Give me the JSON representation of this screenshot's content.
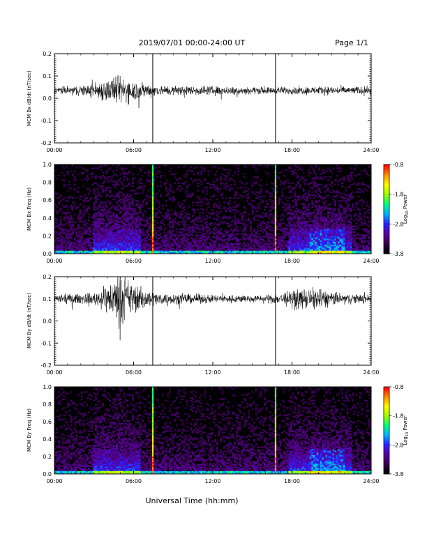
{
  "header": {
    "title": "2019/07/01  00:00-24:00 UT",
    "page": "Page 1/1"
  },
  "footer": {
    "xlabel": "Universal Time (hh:mm)"
  },
  "colorbar": {
    "label": "Log10 Power",
    "label_main": "Log",
    "label_sub": "10",
    "label_tail": " Power",
    "ticks": [
      "-0.8",
      "-1.8",
      "-2.8",
      "-3.8"
    ],
    "range": [
      -3.8,
      -0.8
    ],
    "colors": [
      "#000000",
      "#3a0050",
      "#5a00a0",
      "#2a20ff",
      "#00b4ff",
      "#00ff80",
      "#a0ff00",
      "#ffff00",
      "#ff9000",
      "#ff0000"
    ]
  },
  "chart_data": [
    {
      "type": "line",
      "panel": "bx-timeseries",
      "title": "",
      "xlabel": "",
      "ylabel": "MCM Bx dB/dt (nT/sec)",
      "xlim": [
        0,
        24
      ],
      "ylim": [
        -0.2,
        0.2
      ],
      "xticks": [
        "00:00",
        "06:00",
        "12:00",
        "18:00",
        "24:00"
      ],
      "yticks": [
        "0.2",
        "0.1",
        "0.0",
        "-0.1",
        "-0.2"
      ],
      "baseline": 0.035,
      "noise_profile": [
        [
          0,
          0.012
        ],
        [
          2.5,
          0.02
        ],
        [
          3.5,
          0.035
        ],
        [
          4.8,
          0.05
        ],
        [
          5.5,
          0.045
        ],
        [
          6.5,
          0.03
        ],
        [
          8,
          0.018
        ],
        [
          12,
          0.016
        ],
        [
          16,
          0.012
        ],
        [
          20,
          0.015
        ],
        [
          24,
          0.013
        ]
      ],
      "spikes": [
        {
          "x": 7.45,
          "y": 0.2
        },
        {
          "x": 7.45,
          "y": -0.2
        },
        {
          "x": 16.75,
          "y": 0.2
        },
        {
          "x": 16.75,
          "y": -0.2
        }
      ]
    },
    {
      "type": "heatmap",
      "panel": "bx-spectrogram",
      "title": "",
      "ylabel": "MCM Bx Freq (Hz)",
      "xlim": [
        0,
        24
      ],
      "ylim": [
        0,
        1.0
      ],
      "xticks": [
        "00:00",
        "06:00",
        "12:00",
        "18:00",
        "24:00"
      ],
      "yticks": [
        "1.0",
        "0.8",
        "0.6",
        "0.4",
        "0.2",
        "0.0"
      ],
      "enhanced_periods": [
        [
          3.0,
          6.5
        ],
        [
          17.8,
          22.5
        ]
      ],
      "spike_columns": [
        7.45,
        16.75
      ]
    },
    {
      "type": "line",
      "panel": "by-timeseries",
      "title": "",
      "ylabel": "MCM By dB/dt (nT/sec)",
      "xlim": [
        0,
        24
      ],
      "ylim": [
        -0.2,
        0.2
      ],
      "xticks": [
        "00:00",
        "06:00",
        "12:00",
        "18:00",
        "24:00"
      ],
      "yticks": [
        "0.2",
        "0.1",
        "0.0",
        "-0.1",
        "-0.2"
      ],
      "baseline": 0.1,
      "noise_profile": [
        [
          0,
          0.015
        ],
        [
          3,
          0.02
        ],
        [
          4,
          0.05
        ],
        [
          4.8,
          0.09
        ],
        [
          5.5,
          0.07
        ],
        [
          6.5,
          0.04
        ],
        [
          8,
          0.02
        ],
        [
          12,
          0.015
        ],
        [
          16,
          0.012
        ],
        [
          18.5,
          0.035
        ],
        [
          20,
          0.04
        ],
        [
          21.5,
          0.02
        ],
        [
          24,
          0.015
        ]
      ],
      "spikes": [
        {
          "x": 7.45,
          "y": 0.2
        },
        {
          "x": 7.45,
          "y": -0.2
        },
        {
          "x": 16.75,
          "y": 0.2
        },
        {
          "x": 16.75,
          "y": -0.2
        }
      ]
    },
    {
      "type": "heatmap",
      "panel": "by-spectrogram",
      "title": "",
      "ylabel": "MCM By Freq (Hz)",
      "xlim": [
        0,
        24
      ],
      "ylim": [
        0,
        1.0
      ],
      "xticks": [
        "00:00",
        "06:00",
        "12:00",
        "18:00",
        "24:00"
      ],
      "yticks": [
        "1.0",
        "0.8",
        "0.6",
        "0.4",
        "0.2",
        "0.0"
      ],
      "enhanced_periods": [
        [
          3.0,
          6.5
        ],
        [
          17.8,
          22.5
        ]
      ],
      "spike_columns": [
        7.45,
        16.75
      ]
    }
  ]
}
